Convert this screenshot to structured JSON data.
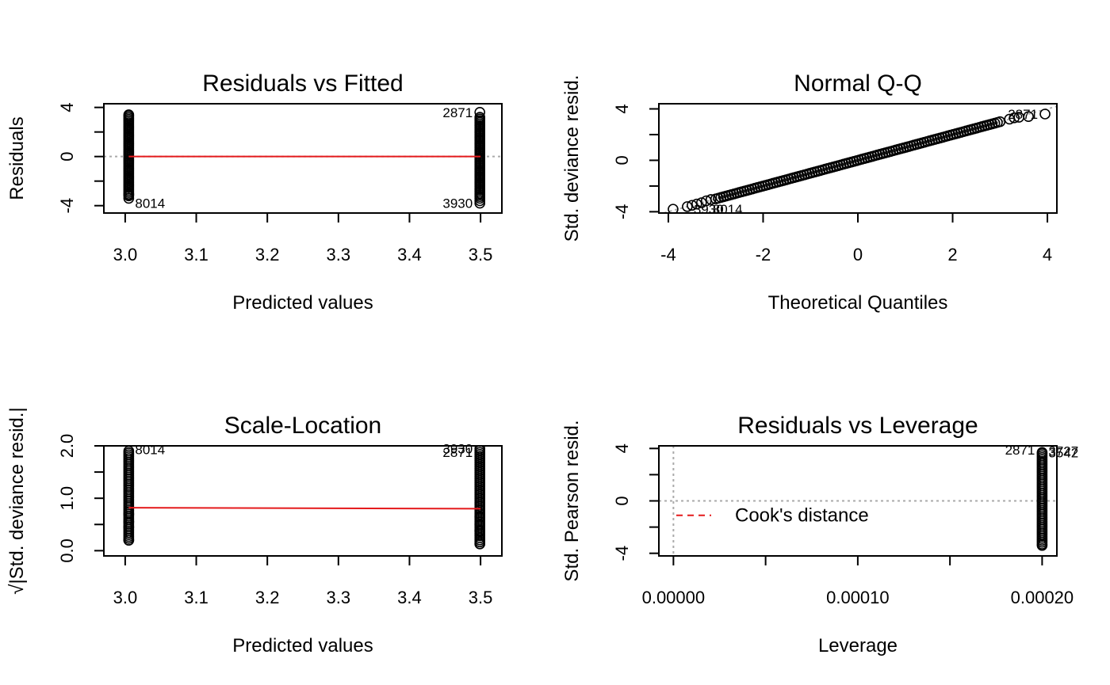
{
  "chart_data": [
    {
      "id": "rvf",
      "type": "scatter",
      "title": "Residuals vs Fitted",
      "xlabel": "Predicted values",
      "ylabel": "Residuals",
      "xlim": [
        2.97,
        3.53
      ],
      "ylim": [
        -4.6,
        4.3
      ],
      "xticks": [
        3.0,
        3.1,
        3.2,
        3.3,
        3.4,
        3.5
      ],
      "xtick_labels": [
        "3.0",
        "3.1",
        "3.2",
        "3.3",
        "3.4",
        "3.5"
      ],
      "yticks": [
        -4,
        -2,
        0,
        2,
        4
      ],
      "ytick_labels": [
        "-4",
        "",
        "0",
        "",
        "4"
      ],
      "reference_line": {
        "orientation": "horizontal",
        "value": 0,
        "style": "dotted",
        "color": "#aaaaaa"
      },
      "smooth_line": {
        "x": [
          3.005,
          3.5
        ],
        "y": [
          0.0,
          0.0
        ],
        "color": "#e41a1c"
      },
      "point_groups": [
        {
          "x": 3.005,
          "y_min": -3.2,
          "y_max": 3.3,
          "extra_y": [
            -3.4,
            -3.1,
            3.4
          ]
        },
        {
          "x": 3.499,
          "y_min": -3.4,
          "y_max": 3.2,
          "extra_y": [
            -3.8,
            -3.6,
            3.6
          ]
        }
      ],
      "labeled_points": [
        {
          "label": "8014",
          "x": 3.005,
          "y": -3.8,
          "side": "right"
        },
        {
          "label": "2871",
          "x": 3.499,
          "y": 3.6,
          "side": "left"
        },
        {
          "label": "3930",
          "x": 3.499,
          "y": -3.8,
          "side": "left"
        }
      ]
    },
    {
      "id": "qq",
      "type": "scatter",
      "title": "Normal Q-Q",
      "xlabel": "Theoretical Quantiles",
      "ylabel": "Std. deviance resid.",
      "xlim": [
        -4.2,
        4.2
      ],
      "ylim": [
        -4.1,
        4.4
      ],
      "xticks": [
        -4,
        -2,
        0,
        2,
        4
      ],
      "xtick_labels": [
        "-4",
        "-2",
        "0",
        "2",
        "4"
      ],
      "yticks": [
        -4,
        -2,
        0,
        2,
        4
      ],
      "ytick_labels": [
        "-4",
        "",
        "0",
        "",
        "4"
      ],
      "reference_line": {
        "orientation": "diagonal",
        "x": [
          -4.2,
          4.2
        ],
        "y": [
          -4.2,
          4.2
        ],
        "style": "dotted",
        "color": "#aaaaaa"
      },
      "series": [
        {
          "name": "",
          "x_range": [
            -3.0,
            3.0
          ],
          "slope": 1.0,
          "count": 110
        }
      ],
      "tail_points": {
        "x": [
          -3.9,
          -3.6,
          -3.5,
          -3.4,
          -3.3,
          -3.2,
          -3.1,
          3.2,
          3.3,
          3.4,
          3.6,
          3.95
        ],
        "y": [
          -3.8,
          -3.6,
          -3.5,
          -3.4,
          -3.3,
          -3.15,
          -3.05,
          3.2,
          3.3,
          3.35,
          3.4,
          3.6
        ]
      },
      "labeled_points": [
        {
          "label": "2871",
          "x": 3.95,
          "y": 3.6,
          "side": "left"
        },
        {
          "label": "3930",
          "x": -3.6,
          "y": -3.8,
          "side": "right"
        },
        {
          "label": "8014",
          "x": -3.2,
          "y": -3.8,
          "side": "right"
        }
      ]
    },
    {
      "id": "sl",
      "type": "scatter",
      "title": "Scale-Location",
      "xlabel": "Predicted values",
      "ylabel": "√|Std. deviance resid.|",
      "xlim": [
        2.97,
        3.53
      ],
      "ylim": [
        -0.1,
        2.0
      ],
      "xticks": [
        3.0,
        3.1,
        3.2,
        3.3,
        3.4,
        3.5
      ],
      "xtick_labels": [
        "3.0",
        "3.1",
        "3.2",
        "3.3",
        "3.4",
        "3.5"
      ],
      "yticks": [
        0.0,
        0.5,
        1.0,
        1.5,
        2.0
      ],
      "ytick_labels": [
        "0.0",
        "",
        "1.0",
        "",
        "2.0"
      ],
      "smooth_line": {
        "x": [
          3.005,
          3.5
        ],
        "y": [
          0.82,
          0.8
        ],
        "color": "#e41a1c"
      },
      "point_groups": [
        {
          "x": 3.005,
          "y_min": 0.2,
          "y_max": 1.9,
          "extra_y": [
            0.2,
            0.45,
            0.55,
            0.7
          ]
        },
        {
          "x": 3.499,
          "y_min": 0.13,
          "y_max": 1.95,
          "extra_y": [
            0.13,
            0.38,
            0.5,
            0.65
          ]
        }
      ],
      "labeled_points": [
        {
          "label": "8014",
          "x": 3.005,
          "y": 1.93,
          "side": "right"
        },
        {
          "label": "3930",
          "x": 3.499,
          "y": 1.95,
          "side": "left"
        },
        {
          "label": "2871",
          "x": 3.499,
          "y": 1.88,
          "side": "left"
        }
      ]
    },
    {
      "id": "rvl",
      "type": "scatter",
      "title": "Residuals vs Leverage",
      "xlabel": "Leverage",
      "ylabel": "Std. Pearson resid.",
      "xlim": [
        -7.9e-06,
        0.000208
      ],
      "ylim": [
        -4.2,
        4.2
      ],
      "xticks": [
        0.0,
        5e-05,
        0.0001,
        0.00015,
        0.0002
      ],
      "xtick_labels": [
        "0.00000",
        "",
        "0.00010",
        "",
        "0.00020"
      ],
      "yticks": [
        -4,
        -2,
        0,
        2,
        4
      ],
      "ytick_labels": [
        "-4",
        "",
        "0",
        "",
        "4"
      ],
      "reference_lines": [
        {
          "orientation": "horizontal",
          "value": 0,
          "style": "dotted",
          "color": "#aaaaaa"
        },
        {
          "orientation": "vertical",
          "value": 0,
          "style": "dotted",
          "color": "#aaaaaa"
        }
      ],
      "point_groups": [
        {
          "x": 0.0002,
          "y_min": -3.3,
          "y_max": 3.6,
          "extra_y": [
            -3.4,
            3.7
          ]
        }
      ],
      "labeled_points": [
        {
          "label": "2871",
          "x": 0.0002,
          "y": 3.9,
          "side": "left"
        },
        {
          "label": "3727",
          "x": 0.0002,
          "y": 3.8,
          "side": "right"
        },
        {
          "label": "3542",
          "x": 0.0002,
          "y": 3.7,
          "side": "right"
        }
      ],
      "legend": {
        "entries": [
          "Cook's distance"
        ],
        "style": "dashed",
        "color": "#e41a1c",
        "position": "bottom-left"
      }
    }
  ]
}
